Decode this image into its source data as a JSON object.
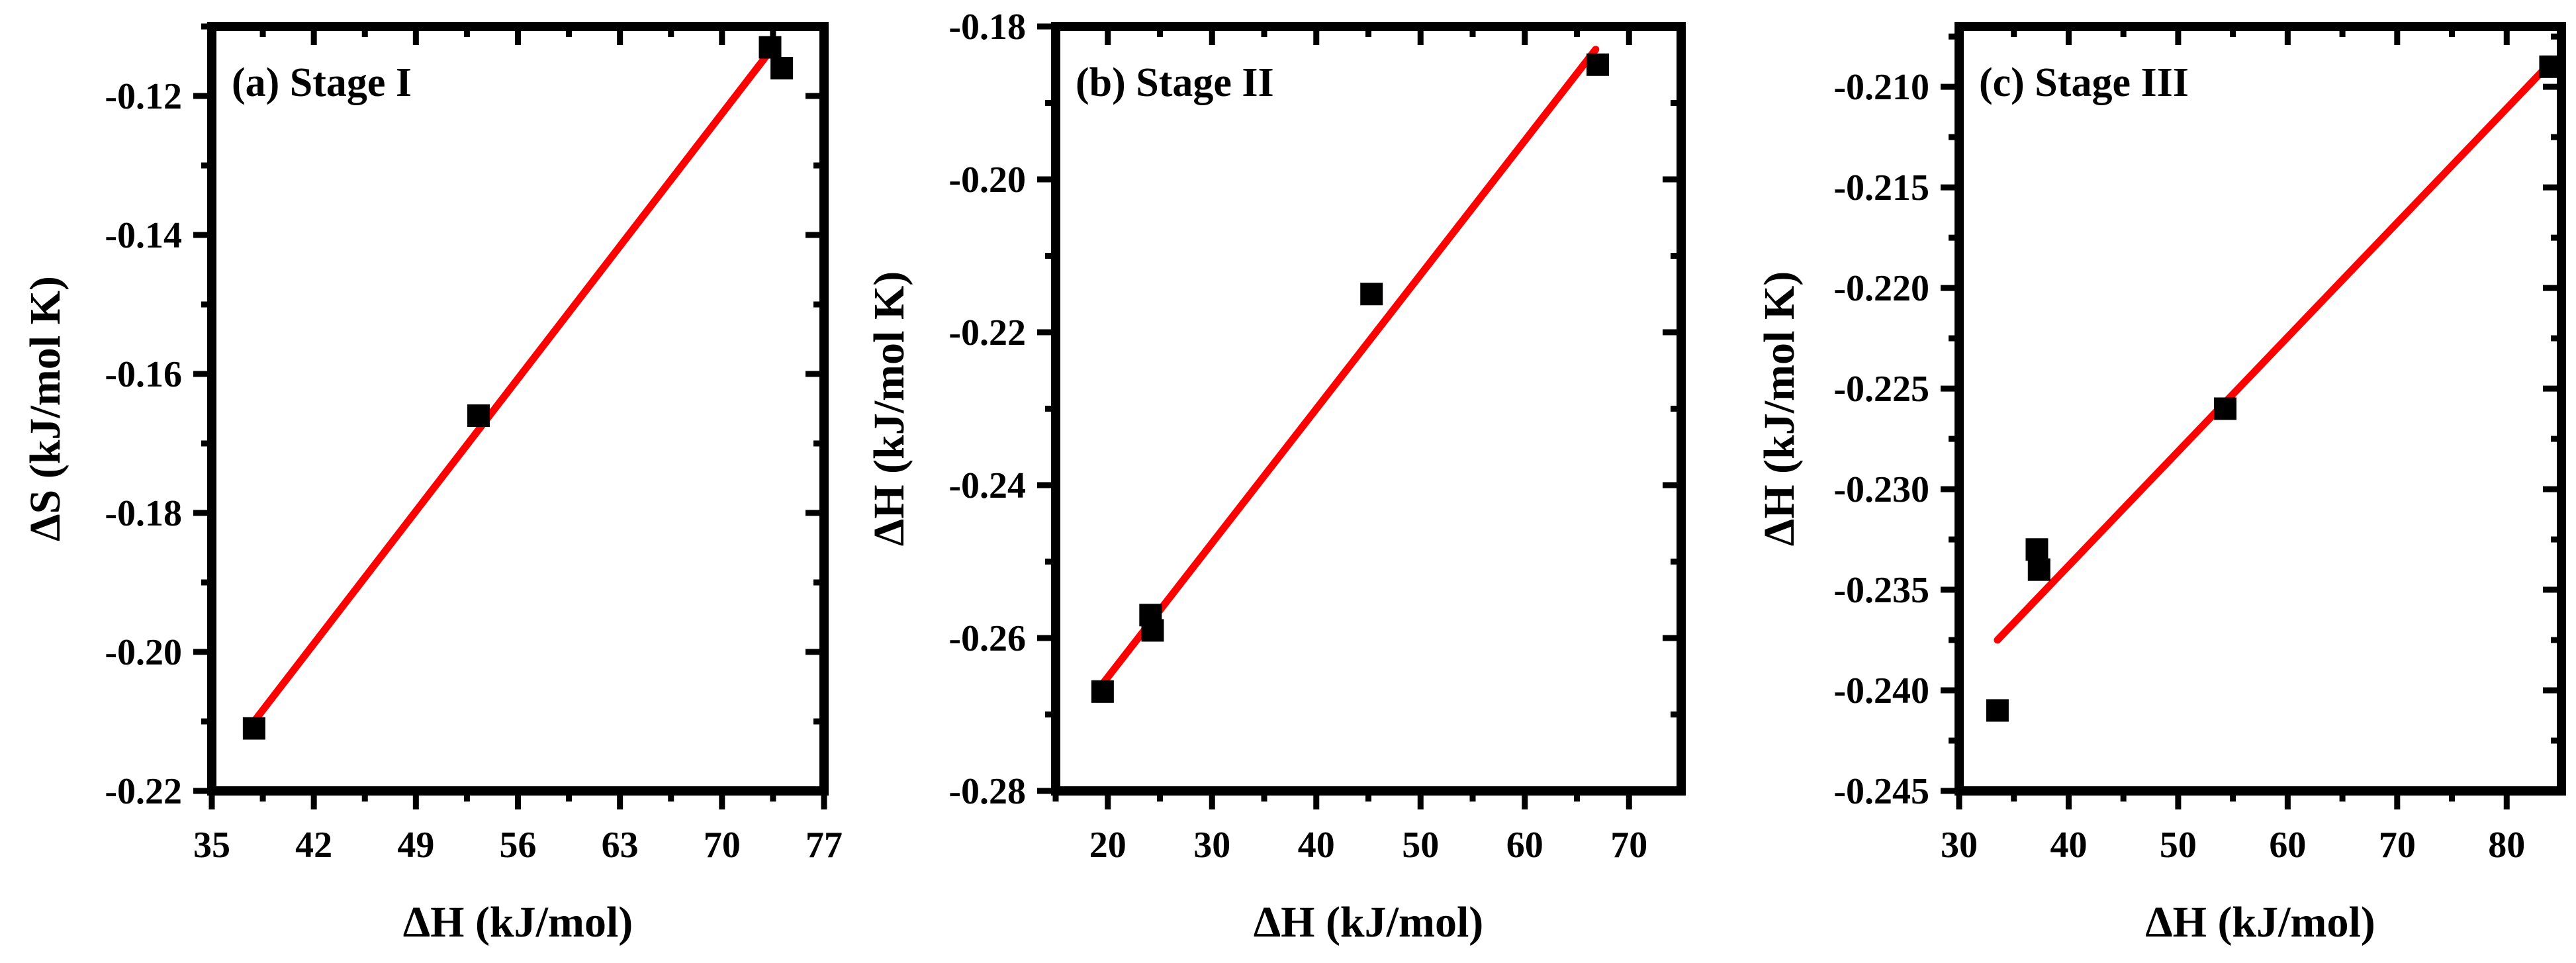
{
  "colors": {
    "marker": "#000000",
    "fit_line": "#ff0000",
    "frame": "#000000"
  },
  "chart_data": [
    {
      "type": "scatter",
      "panel_label": "(a) Stage I",
      "xlabel": "ΔH (kJ/mol)",
      "ylabel": "ΔS (kJ/mol K)",
      "xlim": [
        35,
        77
      ],
      "ylim": [
        -0.22,
        -0.11
      ],
      "xticks": [
        35,
        42,
        49,
        56,
        63,
        70,
        77
      ],
      "yticks": [
        -0.22,
        -0.2,
        -0.18,
        -0.16,
        -0.14,
        -0.12
      ],
      "xtick_labels": [
        "35",
        "42",
        "49",
        "56",
        "63",
        "70",
        "77"
      ],
      "ytick_labels": [
        "-0.22",
        "-0.20",
        "-0.18",
        "-0.16",
        "-0.14",
        "-0.12"
      ],
      "series": [
        {
          "type": "scatter",
          "marker": "square",
          "points": [
            [
              37.9,
              -0.211
            ],
            [
              53.3,
              -0.166
            ],
            [
              73.3,
              -0.113
            ],
            [
              74.1,
              -0.116
            ]
          ]
        },
        {
          "type": "line",
          "style": "linear-fit",
          "points": [
            [
              37.9,
              -0.21
            ],
            [
              73.5,
              -0.113
            ]
          ]
        }
      ],
      "grid": false
    },
    {
      "type": "scatter",
      "panel_label": "(b) Stage II",
      "xlabel": "ΔH (kJ/mol)",
      "ylabel": "ΔH (kJ/mol K)",
      "xlim": [
        15,
        75
      ],
      "ylim": [
        -0.28,
        -0.18
      ],
      "xticks": [
        20,
        30,
        40,
        50,
        60,
        70
      ],
      "yticks": [
        -0.28,
        -0.26,
        -0.24,
        -0.22,
        -0.2,
        -0.18
      ],
      "xtick_labels": [
        "20",
        "30",
        "40",
        "50",
        "60",
        "70"
      ],
      "ytick_labels": [
        "-0.28",
        "-0.26",
        "-0.24",
        "-0.22",
        "-0.20",
        "-0.18"
      ],
      "series": [
        {
          "type": "scatter",
          "marker": "square",
          "points": [
            [
              19.5,
              -0.267
            ],
            [
              24.1,
              -0.257
            ],
            [
              24.3,
              -0.259
            ],
            [
              45.3,
              -0.215
            ],
            [
              67.0,
              -0.185
            ]
          ]
        },
        {
          "type": "line",
          "style": "linear-fit",
          "points": [
            [
              19.5,
              -0.266
            ],
            [
              66.8,
              -0.183
            ]
          ]
        }
      ],
      "grid": false
    },
    {
      "type": "scatter",
      "panel_label": "(c) Stage III",
      "xlabel": "ΔH (kJ/mol)",
      "ylabel": "ΔH (kJ/mol K)",
      "xlim": [
        30,
        85
      ],
      "ylim": [
        -0.245,
        -0.207
      ],
      "xticks": [
        30,
        40,
        50,
        60,
        70,
        80
      ],
      "yticks": [
        -0.245,
        -0.24,
        -0.235,
        -0.23,
        -0.225,
        -0.22,
        -0.215,
        -0.21
      ],
      "xtick_labels": [
        "30",
        "40",
        "50",
        "60",
        "70",
        "80"
      ],
      "ytick_labels": [
        "-0.245",
        "-0.240",
        "-0.235",
        "-0.230",
        "-0.225",
        "-0.220",
        "-0.215",
        "-0.210"
      ],
      "series": [
        {
          "type": "scatter",
          "marker": "square",
          "points": [
            [
              33.5,
              -0.241
            ],
            [
              37.1,
              -0.233
            ],
            [
              37.3,
              -0.234
            ],
            [
              54.3,
              -0.226
            ],
            [
              84.0,
              -0.209
            ]
          ]
        },
        {
          "type": "line",
          "style": "linear-fit",
          "points": [
            [
              33.5,
              -0.2375
            ],
            [
              84.0,
              -0.2088
            ]
          ]
        }
      ],
      "grid": false
    }
  ]
}
